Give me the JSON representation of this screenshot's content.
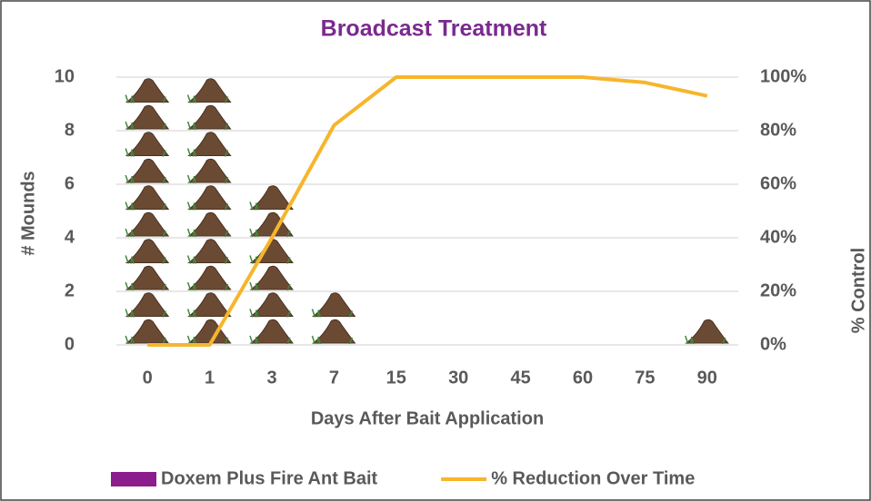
{
  "chart_data": {
    "type": "bar-line",
    "title": "Broadcast Treatment",
    "x_label": "Days After Bait Application",
    "y_label": "# Mounds",
    "y2_label": "% Control",
    "categories": [
      "0",
      "1",
      "3",
      "7",
      "15",
      "30",
      "45",
      "60",
      "75",
      "90"
    ],
    "series": [
      {
        "name": "Doxem Plus Fire Ant Bait",
        "type": "bar",
        "color": "#8b1e8c",
        "values": [
          10,
          10,
          6,
          2,
          0,
          0,
          0,
          0,
          0,
          1
        ]
      },
      {
        "name": "% Reduction Over Time",
        "type": "line",
        "axis": "y2",
        "color": "#f7b52c",
        "values": [
          0,
          0,
          40,
          82,
          100,
          100,
          100,
          100,
          98,
          93
        ]
      }
    ],
    "ylim": [
      0,
      10
    ],
    "yticks": [
      0,
      2,
      4,
      6,
      8,
      10
    ],
    "y2lim": [
      0,
      100
    ],
    "y2ticks": [
      {
        "value": 0,
        "label": "0%"
      },
      {
        "value": 20,
        "label": "20%"
      },
      {
        "value": 40,
        "label": "40%"
      },
      {
        "value": 60,
        "label": "60%"
      },
      {
        "value": 80,
        "label": "80%"
      },
      {
        "value": 100,
        "label": "100%"
      }
    ],
    "grid": true,
    "legend": "bottom"
  }
}
